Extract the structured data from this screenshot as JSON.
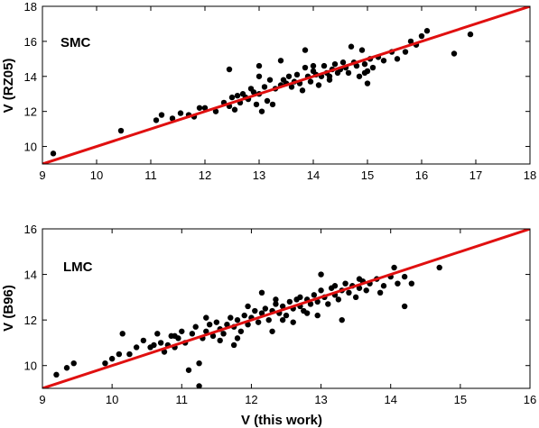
{
  "chart_data": [
    {
      "type": "scatter",
      "label": "SMC",
      "xlabel": "",
      "ylabel": "V (RZ05)",
      "xlim": [
        9,
        18
      ],
      "ylim": [
        9,
        18
      ],
      "xticks": [
        9,
        10,
        11,
        12,
        13,
        14,
        15,
        16,
        17,
        18
      ],
      "yticks": [
        10,
        12,
        14,
        16,
        18
      ],
      "line": {
        "x": [
          9,
          18
        ],
        "y": [
          9,
          18
        ],
        "color": "#e01010"
      },
      "points": [
        [
          9.2,
          9.6
        ],
        [
          10.45,
          10.9
        ],
        [
          11.1,
          11.5
        ],
        [
          11.2,
          11.8
        ],
        [
          11.4,
          11.6
        ],
        [
          11.55,
          11.9
        ],
        [
          11.7,
          11.8
        ],
        [
          11.8,
          11.7
        ],
        [
          11.9,
          12.2
        ],
        [
          12.0,
          12.2
        ],
        [
          12.2,
          12.0
        ],
        [
          12.35,
          12.5
        ],
        [
          12.45,
          12.3
        ],
        [
          12.5,
          12.8
        ],
        [
          12.55,
          12.1
        ],
        [
          12.6,
          12.9
        ],
        [
          12.65,
          12.5
        ],
        [
          12.7,
          13.0
        ],
        [
          12.75,
          12.8
        ],
        [
          12.8,
          12.7
        ],
        [
          12.85,
          13.3
        ],
        [
          12.9,
          13.1
        ],
        [
          12.95,
          12.4
        ],
        [
          13.0,
          13.0
        ],
        [
          13.05,
          12.0
        ],
        [
          13.1,
          13.4
        ],
        [
          13.15,
          12.6
        ],
        [
          13.2,
          13.8
        ],
        [
          13.25,
          12.4
        ],
        [
          13.3,
          13.3
        ],
        [
          13.4,
          13.5
        ],
        [
          13.45,
          13.8
        ],
        [
          13.5,
          13.6
        ],
        [
          13.55,
          14.0
        ],
        [
          13.6,
          13.4
        ],
        [
          13.65,
          13.7
        ],
        [
          13.7,
          14.1
        ],
        [
          13.75,
          13.6
        ],
        [
          13.8,
          13.2
        ],
        [
          13.85,
          14.5
        ],
        [
          13.9,
          14.0
        ],
        [
          13.95,
          13.7
        ],
        [
          14.0,
          14.3
        ],
        [
          14.05,
          14.1
        ],
        [
          14.1,
          13.5
        ],
        [
          14.15,
          14.0
        ],
        [
          14.2,
          14.6
        ],
        [
          14.25,
          14.2
        ],
        [
          14.3,
          13.8
        ],
        [
          14.35,
          14.4
        ],
        [
          14.4,
          14.7
        ],
        [
          14.45,
          14.2
        ],
        [
          14.5,
          14.4
        ],
        [
          14.55,
          14.8
        ],
        [
          14.6,
          14.5
        ],
        [
          14.65,
          14.2
        ],
        [
          14.7,
          15.7
        ],
        [
          14.75,
          14.8
        ],
        [
          14.8,
          14.6
        ],
        [
          14.85,
          14.0
        ],
        [
          14.9,
          15.5
        ],
        [
          14.95,
          14.7
        ],
        [
          15.0,
          14.3
        ],
        [
          15.05,
          15.0
        ],
        [
          15.1,
          14.5
        ],
        [
          15.2,
          15.1
        ],
        [
          15.3,
          14.9
        ],
        [
          15.45,
          15.4
        ],
        [
          15.55,
          15.0
        ],
        [
          15.7,
          15.4
        ],
        [
          15.8,
          16.0
        ],
        [
          15.9,
          15.8
        ],
        [
          16.0,
          16.3
        ],
        [
          16.1,
          16.6
        ],
        [
          16.6,
          15.3
        ],
        [
          16.9,
          16.4
        ],
        [
          12.45,
          14.4
        ],
        [
          13.4,
          14.9
        ],
        [
          13.85,
          15.5
        ],
        [
          14.0,
          14.6
        ],
        [
          13.0,
          14.6
        ],
        [
          13.0,
          14.0
        ],
        [
          14.3,
          14.0
        ],
        [
          15.0,
          13.6
        ],
        [
          14.95,
          14.2
        ]
      ]
    },
    {
      "type": "scatter",
      "label": "LMC",
      "xlabel": "V (this work)",
      "ylabel": "V (B96)",
      "xlim": [
        9,
        16
      ],
      "ylim": [
        9,
        16
      ],
      "xticks": [
        9,
        10,
        11,
        12,
        13,
        14,
        15,
        16
      ],
      "yticks": [
        10,
        12,
        14,
        16
      ],
      "line": {
        "x": [
          9,
          16
        ],
        "y": [
          9,
          16
        ],
        "color": "#e01010"
      },
      "points": [
        [
          9.2,
          9.6
        ],
        [
          9.35,
          9.9
        ],
        [
          9.45,
          10.1
        ],
        [
          9.9,
          10.1
        ],
        [
          10.0,
          10.3
        ],
        [
          10.1,
          10.5
        ],
        [
          10.15,
          11.4
        ],
        [
          10.25,
          10.5
        ],
        [
          10.35,
          10.8
        ],
        [
          10.45,
          11.1
        ],
        [
          10.55,
          10.8
        ],
        [
          10.65,
          11.4
        ],
        [
          10.7,
          11.0
        ],
        [
          10.75,
          10.6
        ],
        [
          10.8,
          10.9
        ],
        [
          10.85,
          11.3
        ],
        [
          10.9,
          10.8
        ],
        [
          10.95,
          11.2
        ],
        [
          11.0,
          11.5
        ],
        [
          11.05,
          11.0
        ],
        [
          11.1,
          9.8
        ],
        [
          11.15,
          11.4
        ],
        [
          11.2,
          11.7
        ],
        [
          11.25,
          10.1
        ],
        [
          11.3,
          11.2
        ],
        [
          11.35,
          11.5
        ],
        [
          11.4,
          11.8
        ],
        [
          11.45,
          11.3
        ],
        [
          11.5,
          11.9
        ],
        [
          11.55,
          11.6
        ],
        [
          11.6,
          11.4
        ],
        [
          11.65,
          11.8
        ],
        [
          11.7,
          12.1
        ],
        [
          11.75,
          11.7
        ],
        [
          11.8,
          12.0
        ],
        [
          11.85,
          11.5
        ],
        [
          11.9,
          12.2
        ],
        [
          11.95,
          11.8
        ],
        [
          12.0,
          12.1
        ],
        [
          12.05,
          12.4
        ],
        [
          12.1,
          11.9
        ],
        [
          12.15,
          12.3
        ],
        [
          12.2,
          12.5
        ],
        [
          12.25,
          12.0
        ],
        [
          12.3,
          12.4
        ],
        [
          12.35,
          12.7
        ],
        [
          12.4,
          12.3
        ],
        [
          12.45,
          12.6
        ],
        [
          12.5,
          12.2
        ],
        [
          12.55,
          12.8
        ],
        [
          12.6,
          12.5
        ],
        [
          12.65,
          12.9
        ],
        [
          12.7,
          12.6
        ],
        [
          12.75,
          12.4
        ],
        [
          12.8,
          12.9
        ],
        [
          12.85,
          12.7
        ],
        [
          12.9,
          13.1
        ],
        [
          12.95,
          12.8
        ],
        [
          13.0,
          13.3
        ],
        [
          13.05,
          13.0
        ],
        [
          13.1,
          12.7
        ],
        [
          13.15,
          13.4
        ],
        [
          13.2,
          13.1
        ],
        [
          13.25,
          12.9
        ],
        [
          13.3,
          13.3
        ],
        [
          13.35,
          13.6
        ],
        [
          13.4,
          13.2
        ],
        [
          13.45,
          13.5
        ],
        [
          13.5,
          13.0
        ],
        [
          13.55,
          13.4
        ],
        [
          13.6,
          13.7
        ],
        [
          13.65,
          13.3
        ],
        [
          13.7,
          13.6
        ],
        [
          13.8,
          13.8
        ],
        [
          13.9,
          13.5
        ],
        [
          14.0,
          13.9
        ],
        [
          14.05,
          14.3
        ],
        [
          14.1,
          13.6
        ],
        [
          14.2,
          13.9
        ],
        [
          14.3,
          13.6
        ],
        [
          14.7,
          14.3
        ],
        [
          13.0,
          14.0
        ],
        [
          12.15,
          13.2
        ],
        [
          12.3,
          11.5
        ],
        [
          11.75,
          10.9
        ],
        [
          11.25,
          9.1
        ],
        [
          10.9,
          11.3
        ],
        [
          12.6,
          11.9
        ],
        [
          13.55,
          13.8
        ],
        [
          14.2,
          12.6
        ],
        [
          13.3,
          12.0
        ],
        [
          12.95,
          12.2
        ],
        [
          12.45,
          12.0
        ],
        [
          11.55,
          11.1
        ],
        [
          11.95,
          12.6
        ],
        [
          12.7,
          13.0
        ],
        [
          13.2,
          13.5
        ],
        [
          13.85,
          13.2
        ],
        [
          12.8,
          12.3
        ],
        [
          11.35,
          12.1
        ],
        [
          10.6,
          10.9
        ],
        [
          11.8,
          11.2
        ],
        [
          12.35,
          12.9
        ]
      ]
    }
  ]
}
